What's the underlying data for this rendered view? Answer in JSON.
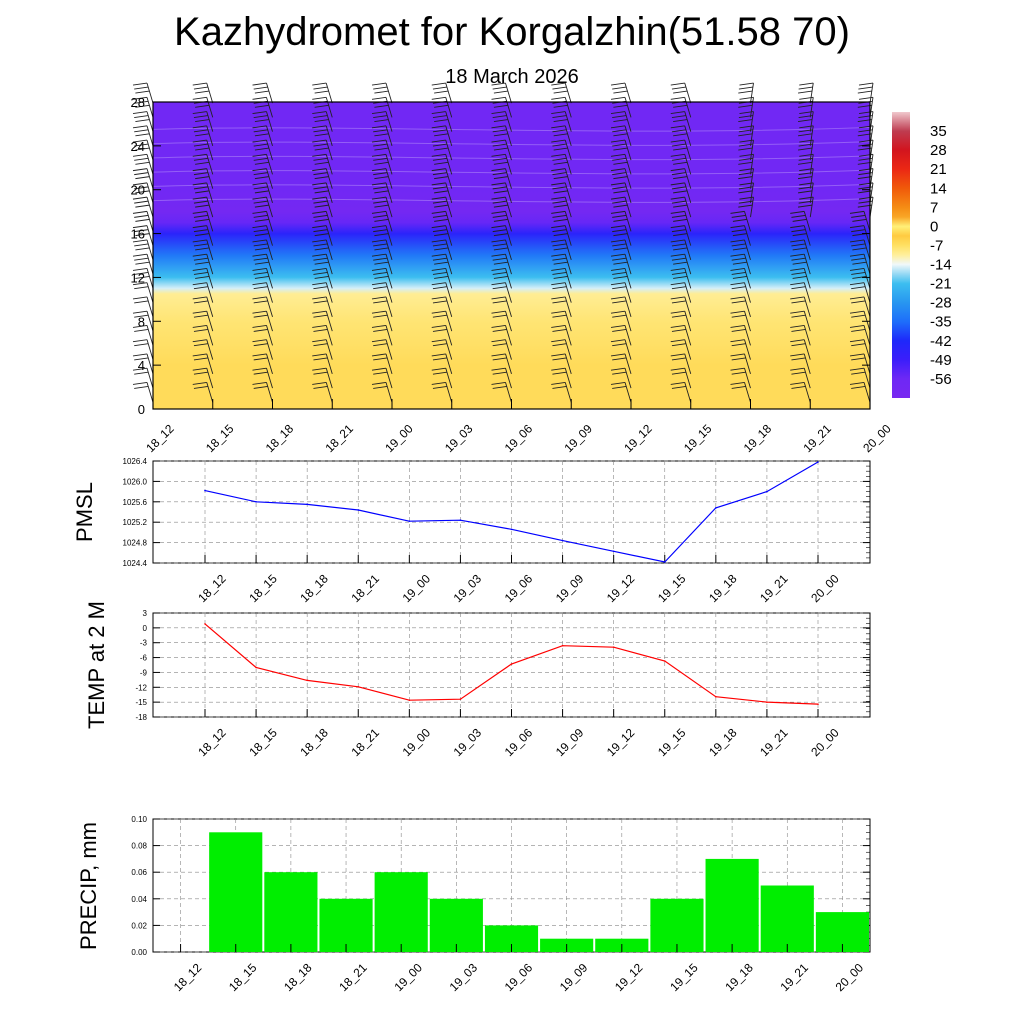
{
  "title": "Kazhydromet for Korgalzhin(51.58 70)",
  "subtitle": "18 March 2026",
  "time_labels": [
    "18_12",
    "18_15",
    "18_18",
    "18_21",
    "19_00",
    "19_03",
    "19_06",
    "19_09",
    "19_12",
    "19_15",
    "19_18",
    "19_21",
    "20_00"
  ],
  "chart_data": [
    {
      "type": "heatmap",
      "name": "vertical-cross-section",
      "x": [
        "18_12",
        "18_15",
        "18_18",
        "18_21",
        "19_00",
        "19_03",
        "19_06",
        "19_09",
        "19_12",
        "19_15",
        "19_18",
        "19_21",
        "20_00"
      ],
      "ylim": [
        0,
        28
      ],
      "yticks": [
        0,
        4,
        8,
        12,
        16,
        20,
        24,
        28
      ],
      "temperature_profile_by_height": [
        {
          "h": 0,
          "t": -6
        },
        {
          "h": 4,
          "t": -6
        },
        {
          "h": 8,
          "t": -8
        },
        {
          "h": 10.5,
          "t": -10
        },
        {
          "h": 11,
          "t": -15
        },
        {
          "h": 12,
          "t": -21
        },
        {
          "h": 14,
          "t": -33
        },
        {
          "h": 16,
          "t": -45
        },
        {
          "h": 17,
          "t": -55
        },
        {
          "h": 18,
          "t": -60
        },
        {
          "h": 20,
          "t": -58
        },
        {
          "h": 28,
          "t": -58
        }
      ],
      "colorbar": {
        "labels": [
          "35",
          "28",
          "21",
          "14",
          "7",
          "0",
          "-7",
          "-14",
          "-21",
          "-28",
          "-35",
          "-42",
          "-49",
          "-56"
        ],
        "min": -63,
        "max": 42
      },
      "wind_barbs": "present at every time step"
    },
    {
      "type": "line",
      "name": "pmsl",
      "ylabel": "PMSL",
      "x": [
        "18_12",
        "18_15",
        "18_18",
        "18_21",
        "19_00",
        "19_03",
        "19_06",
        "19_09",
        "19_12",
        "19_15",
        "19_18",
        "19_21",
        "20_00"
      ],
      "values": [
        1025.82,
        1025.6,
        1025.55,
        1025.44,
        1025.22,
        1025.24,
        1025.06,
        1024.84,
        1024.63,
        1024.42,
        1025.48,
        1025.8,
        1026.38
      ],
      "ylim": [
        1024.4,
        1026.4
      ],
      "yticks": [
        "1024.4",
        "1024.8",
        "1025.2",
        "1025.6",
        "1026.0",
        "1026.4"
      ],
      "color": "#0000ff"
    },
    {
      "type": "line",
      "name": "temp-2m",
      "ylabel": "TEMP at 2 M",
      "x": [
        "18_12",
        "18_15",
        "18_18",
        "18_21",
        "19_00",
        "19_03",
        "19_06",
        "19_09",
        "19_12",
        "19_15",
        "19_18",
        "19_21",
        "20_00"
      ],
      "values": [
        0.8,
        -8.0,
        -10.6,
        -11.9,
        -14.6,
        -14.4,
        -7.3,
        -3.6,
        -3.9,
        -6.7,
        -13.9,
        -15.0,
        -15.4
      ],
      "ylim": [
        -18,
        3
      ],
      "yticks": [
        "3",
        "0",
        "-3",
        "-6",
        "-9",
        "-12",
        "-15",
        "-18"
      ],
      "color": "#ff0000"
    },
    {
      "type": "bar",
      "name": "precip",
      "ylabel": "PRECIP, mm",
      "categories": [
        "18_12",
        "18_15",
        "18_18",
        "18_21",
        "19_00",
        "19_03",
        "19_06",
        "19_09",
        "19_12",
        "19_15",
        "19_18",
        "19_21",
        "20_00"
      ],
      "values": [
        0,
        0.09,
        0.06,
        0.04,
        0.06,
        0.04,
        0.02,
        0.01,
        0.01,
        0.04,
        0.07,
        0.05,
        0.03
      ],
      "ylim": [
        0,
        0.1
      ],
      "yticks": [
        "0.00",
        "0.02",
        "0.04",
        "0.06",
        "0.08",
        "0.10"
      ],
      "color": "#00ee00"
    }
  ]
}
